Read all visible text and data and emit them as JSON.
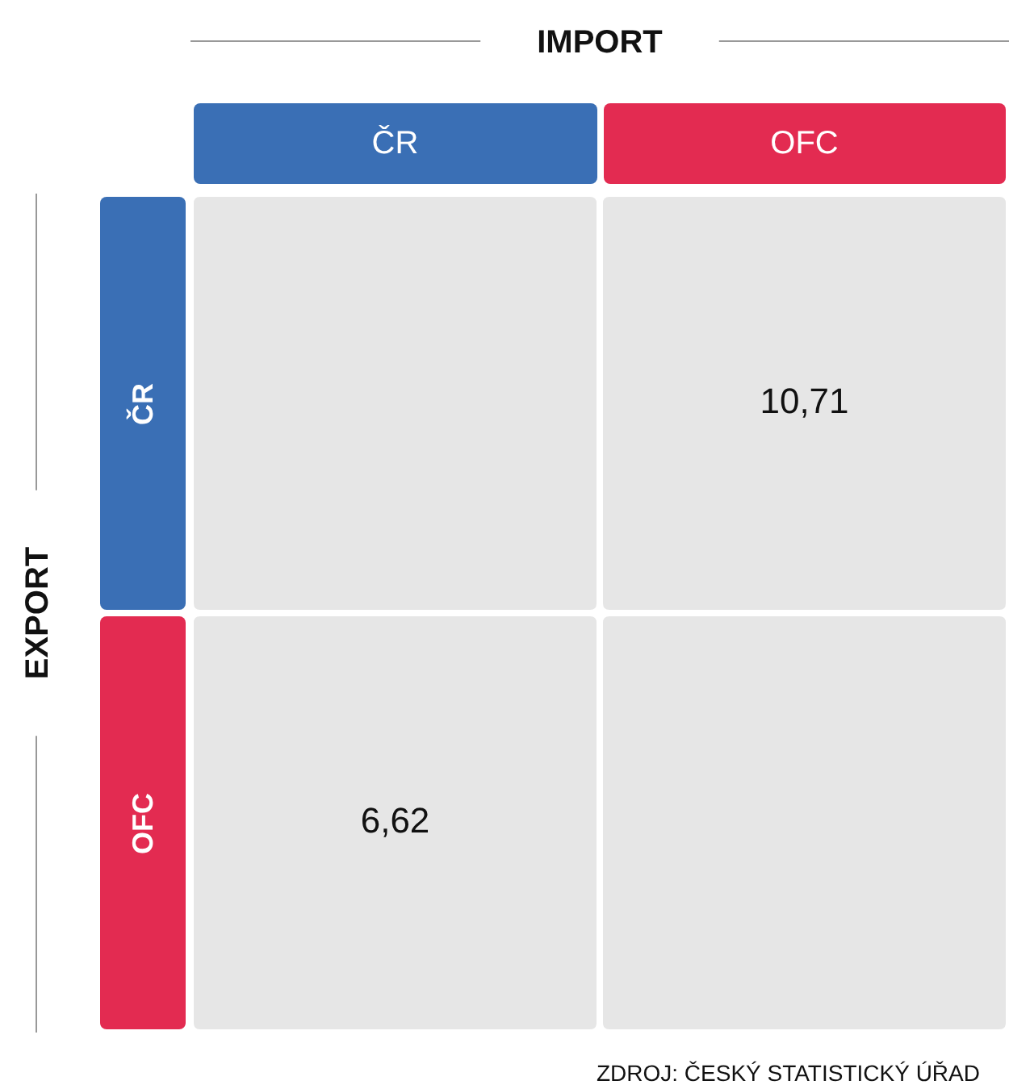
{
  "chart_data": {
    "type": "heatmap",
    "xlabel": "IMPORT",
    "ylabel": "EXPORT",
    "categories": [
      "ČR",
      "OFC"
    ],
    "y_categories": [
      "ČR",
      "OFC"
    ],
    "cells": [
      [
        null,
        10.71
      ],
      [
        6.62,
        null
      ]
    ],
    "cell_labels": [
      [
        null,
        "10,71"
      ],
      [
        "6,62",
        null
      ]
    ],
    "annotations": [
      "ZDROJ: ČESKÝ STATISTICKÝ ÚŘAD"
    ]
  }
}
